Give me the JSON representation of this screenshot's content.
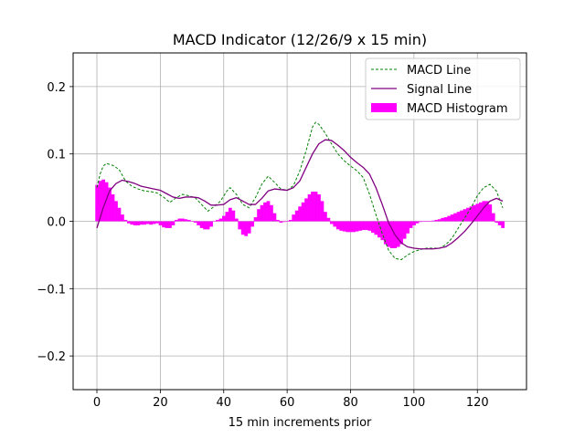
{
  "chart_data": {
    "type": "line",
    "title": "MACD Indicator (12/26/9 x 15 min)",
    "xlabel": "15 min increments prior",
    "ylabel": "",
    "xlim": [
      -7.5,
      135.5
    ],
    "ylim": [
      -0.25,
      0.25
    ],
    "xticks": [
      0,
      20,
      40,
      60,
      80,
      100,
      120
    ],
    "yticks": [
      -0.2,
      -0.1,
      0.0,
      0.1,
      0.2
    ],
    "ytick_labels": [
      "−0.2",
      "−0.1",
      "0.0",
      "0.1",
      "0.2"
    ],
    "grid": true,
    "legend_position": "top-right",
    "series": [
      {
        "name": "MACD Line",
        "style": "dashed",
        "color": "#008000",
        "points": [
          [
            0,
            0.05
          ],
          [
            1,
            0.07
          ],
          [
            2,
            0.082
          ],
          [
            3,
            0.086
          ],
          [
            5,
            0.083
          ],
          [
            7,
            0.077
          ],
          [
            9,
            0.06
          ],
          [
            11,
            0.052
          ],
          [
            13,
            0.048
          ],
          [
            15,
            0.045
          ],
          [
            17,
            0.044
          ],
          [
            19,
            0.042
          ],
          [
            21,
            0.036
          ],
          [
            23,
            0.028
          ],
          [
            25,
            0.035
          ],
          [
            27,
            0.04
          ],
          [
            29,
            0.038
          ],
          [
            31,
            0.035
          ],
          [
            33,
            0.025
          ],
          [
            35,
            0.015
          ],
          [
            37,
            0.022
          ],
          [
            39,
            0.03
          ],
          [
            41,
            0.045
          ],
          [
            42,
            0.05
          ],
          [
            44,
            0.04
          ],
          [
            46,
            0.025
          ],
          [
            48,
            0.02
          ],
          [
            50,
            0.035
          ],
          [
            52,
            0.055
          ],
          [
            54,
            0.067
          ],
          [
            56,
            0.058
          ],
          [
            58,
            0.048
          ],
          [
            60,
            0.046
          ],
          [
            62,
            0.053
          ],
          [
            64,
            0.075
          ],
          [
            66,
            0.105
          ],
          [
            68,
            0.14
          ],
          [
            69,
            0.147
          ],
          [
            70,
            0.144
          ],
          [
            72,
            0.131
          ],
          [
            74,
            0.115
          ],
          [
            76,
            0.1
          ],
          [
            78,
            0.09
          ],
          [
            80,
            0.082
          ],
          [
            82,
            0.075
          ],
          [
            84,
            0.065
          ],
          [
            86,
            0.04
          ],
          [
            88,
            0.01
          ],
          [
            90,
            -0.018
          ],
          [
            92,
            -0.043
          ],
          [
            94,
            -0.055
          ],
          [
            96,
            -0.057
          ],
          [
            98,
            -0.05
          ],
          [
            100,
            -0.045
          ],
          [
            102,
            -0.042
          ],
          [
            104,
            -0.04
          ],
          [
            106,
            -0.04
          ],
          [
            108,
            -0.04
          ],
          [
            110,
            -0.035
          ],
          [
            112,
            -0.025
          ],
          [
            114,
            -0.01
          ],
          [
            116,
            0.005
          ],
          [
            118,
            0.02
          ],
          [
            120,
            0.038
          ],
          [
            122,
            0.05
          ],
          [
            124,
            0.055
          ],
          [
            126,
            0.045
          ],
          [
            128,
            0.02
          ]
        ]
      },
      {
        "name": "Signal Line",
        "style": "solid",
        "color": "#800080",
        "points": [
          [
            0,
            -0.01
          ],
          [
            1,
            0.005
          ],
          [
            2,
            0.02
          ],
          [
            4,
            0.045
          ],
          [
            6,
            0.056
          ],
          [
            8,
            0.061
          ],
          [
            10,
            0.059
          ],
          [
            12,
            0.056
          ],
          [
            14,
            0.052
          ],
          [
            16,
            0.05
          ],
          [
            18,
            0.048
          ],
          [
            20,
            0.046
          ],
          [
            22,
            0.041
          ],
          [
            24,
            0.036
          ],
          [
            26,
            0.034
          ],
          [
            28,
            0.036
          ],
          [
            30,
            0.036
          ],
          [
            32,
            0.035
          ],
          [
            34,
            0.03
          ],
          [
            36,
            0.024
          ],
          [
            38,
            0.024
          ],
          [
            40,
            0.025
          ],
          [
            42,
            0.032
          ],
          [
            44,
            0.035
          ],
          [
            46,
            0.03
          ],
          [
            48,
            0.025
          ],
          [
            50,
            0.025
          ],
          [
            52,
            0.034
          ],
          [
            54,
            0.045
          ],
          [
            56,
            0.048
          ],
          [
            58,
            0.047
          ],
          [
            60,
            0.046
          ],
          [
            62,
            0.05
          ],
          [
            64,
            0.06
          ],
          [
            66,
            0.08
          ],
          [
            68,
            0.1
          ],
          [
            70,
            0.115
          ],
          [
            72,
            0.121
          ],
          [
            74,
            0.12
          ],
          [
            76,
            0.113
          ],
          [
            78,
            0.105
          ],
          [
            80,
            0.095
          ],
          [
            82,
            0.087
          ],
          [
            84,
            0.08
          ],
          [
            86,
            0.07
          ],
          [
            88,
            0.05
          ],
          [
            90,
            0.025
          ],
          [
            92,
            -0.002
          ],
          [
            94,
            -0.02
          ],
          [
            96,
            -0.032
          ],
          [
            98,
            -0.038
          ],
          [
            100,
            -0.04
          ],
          [
            102,
            -0.041
          ],
          [
            104,
            -0.041
          ],
          [
            106,
            -0.041
          ],
          [
            108,
            -0.04
          ],
          [
            110,
            -0.038
          ],
          [
            112,
            -0.032
          ],
          [
            114,
            -0.024
          ],
          [
            116,
            -0.015
          ],
          [
            118,
            -0.004
          ],
          [
            120,
            0.008
          ],
          [
            122,
            0.02
          ],
          [
            124,
            0.03
          ],
          [
            126,
            0.034
          ],
          [
            128,
            0.03
          ]
        ]
      }
    ],
    "histogram": {
      "name": "MACD Histogram",
      "color": "#ff00ff",
      "x_start": 0,
      "values": [
        0.054,
        0.06,
        0.062,
        0.058,
        0.05,
        0.04,
        0.03,
        0.02,
        0.01,
        0.002,
        -0.003,
        -0.005,
        -0.006,
        -0.006,
        -0.005,
        -0.005,
        -0.004,
        -0.005,
        -0.004,
        -0.003,
        -0.006,
        -0.009,
        -0.01,
        -0.01,
        -0.006,
        0.002,
        0.004,
        0.004,
        0.003,
        0.002,
        0.0,
        -0.002,
        -0.006,
        -0.01,
        -0.012,
        -0.012,
        -0.008,
        0.0,
        0.002,
        0.004,
        0.008,
        0.014,
        0.02,
        0.016,
        0.004,
        -0.012,
        -0.02,
        -0.022,
        -0.018,
        -0.008,
        0.006,
        0.018,
        0.024,
        0.028,
        0.03,
        0.024,
        0.012,
        0.002,
        -0.002,
        -0.001,
        0.0,
        0.002,
        0.01,
        0.016,
        0.022,
        0.028,
        0.034,
        0.04,
        0.044,
        0.044,
        0.04,
        0.03,
        0.014,
        0.005,
        -0.004,
        -0.008,
        -0.012,
        -0.014,
        -0.015,
        -0.016,
        -0.016,
        -0.016,
        -0.015,
        -0.014,
        -0.013,
        -0.013,
        -0.014,
        -0.017,
        -0.02,
        -0.024,
        -0.028,
        -0.034,
        -0.038,
        -0.04,
        -0.04,
        -0.038,
        -0.034,
        -0.026,
        -0.018,
        -0.01,
        -0.006,
        -0.003,
        -0.001,
        0.0,
        0.0,
        0.0,
        0.001,
        0.002,
        0.003,
        0.005,
        0.006,
        0.008,
        0.01,
        0.012,
        0.014,
        0.016,
        0.018,
        0.02,
        0.022,
        0.024,
        0.026,
        0.028,
        0.03,
        0.03,
        0.025,
        0.012,
        -0.002,
        -0.006,
        -0.01
      ]
    }
  }
}
